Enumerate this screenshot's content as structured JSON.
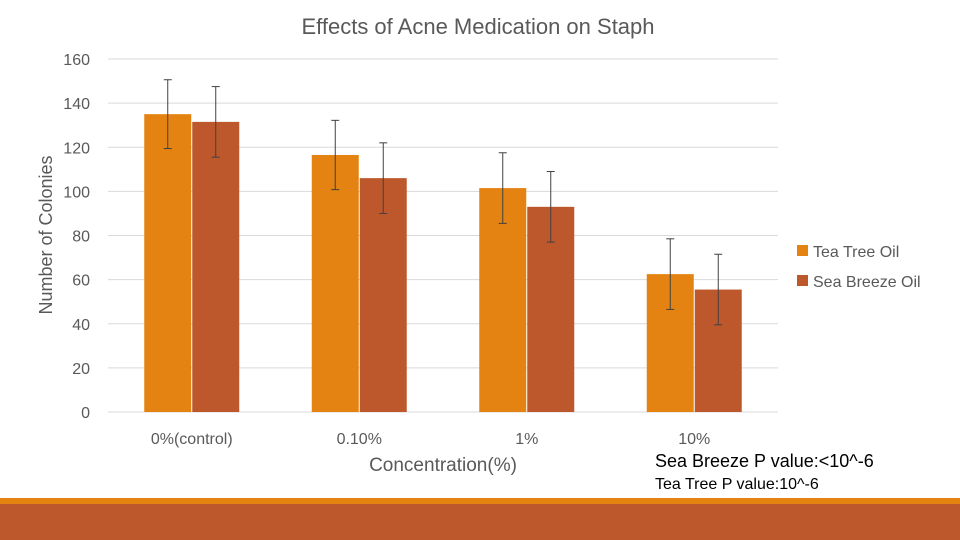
{
  "chart_data": {
    "type": "bar",
    "title": "Effects of Acne Medication on Staph",
    "xlabel": "Concentration(%)",
    "ylabel": "Number of Colonies",
    "categories": [
      "0%(control)",
      "0.10%",
      "1%",
      "10%"
    ],
    "ylim": [
      0,
      160
    ],
    "yticks": [
      0,
      20,
      40,
      60,
      80,
      100,
      120,
      140,
      160
    ],
    "grid": true,
    "legend_position": "right",
    "series": [
      {
        "name": "Tea Tree Oil",
        "color": "#E48312",
        "values": [
          135,
          116.5,
          101.5,
          62.5
        ],
        "errors": [
          15.6,
          15.7,
          16,
          16
        ]
      },
      {
        "name": "Sea Breeze Oil",
        "color": "#BD582C",
        "values": [
          131.5,
          106,
          93,
          55.5
        ],
        "errors": [
          16,
          16,
          16,
          16
        ]
      }
    ]
  },
  "annotations": {
    "sea_breeze_p": "Sea Breeze P value:<10^-6",
    "tea_tree_p": "Tea Tree P value:10^-6"
  },
  "colors": {
    "accent_strip": "#E48312",
    "footer_band": "#BD582C"
  }
}
